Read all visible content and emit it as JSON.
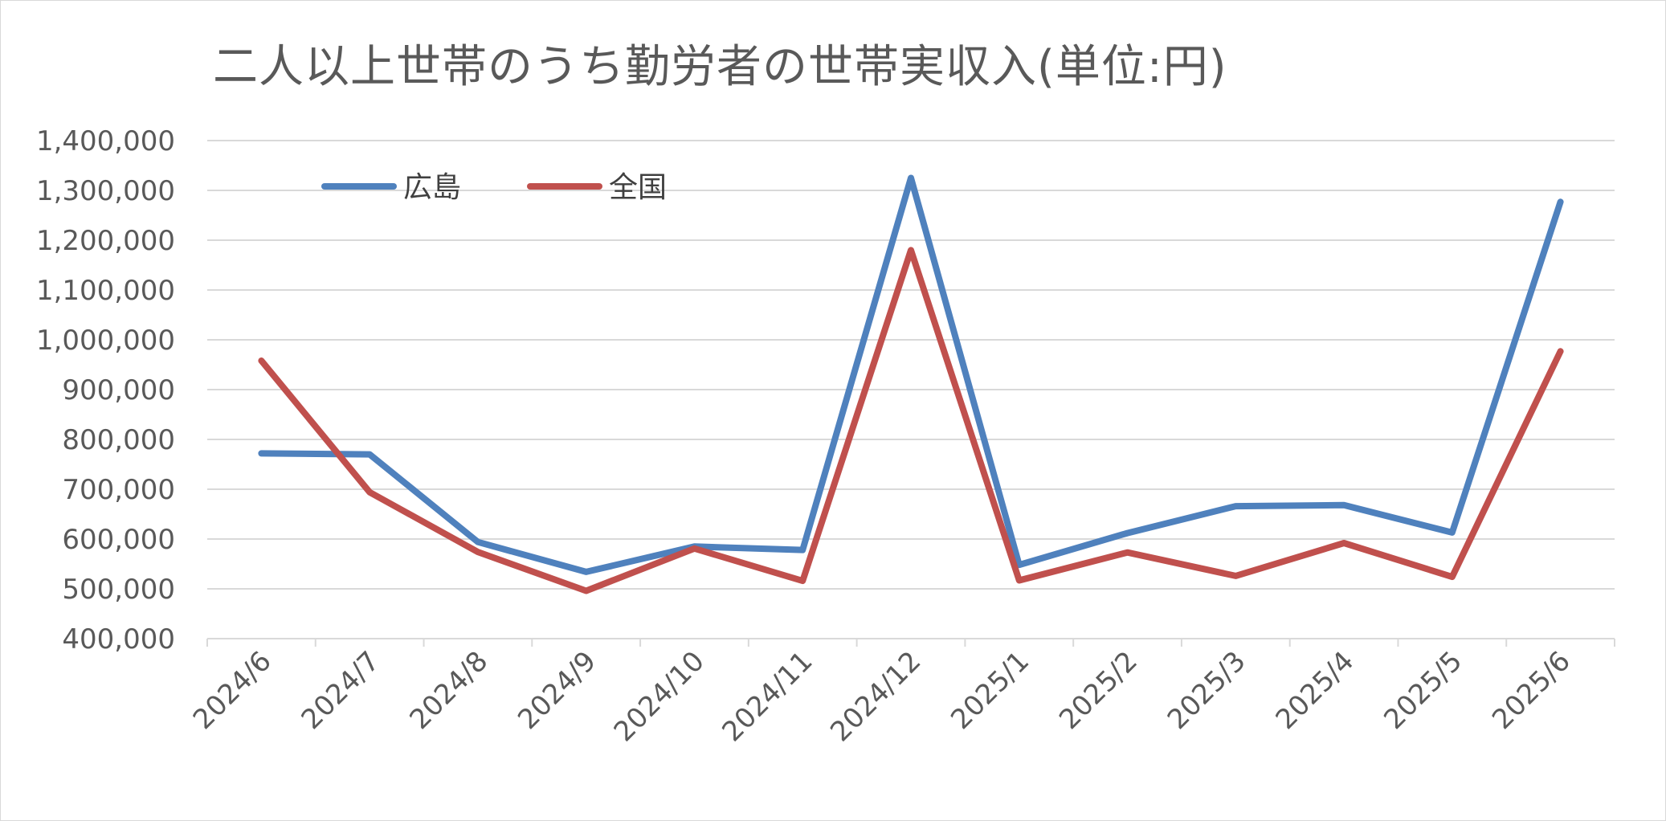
{
  "chart_data": {
    "type": "line",
    "title": "二人以上世帯のうち勤労者の世帯実収入(単位:円)",
    "categories": [
      "2024/6",
      "2024/7",
      "2024/8",
      "2024/9",
      "2024/10",
      "2024/11",
      "2024/12",
      "2025/1",
      "2025/2",
      "2025/3",
      "2025/4",
      "2025/5",
      "2025/6"
    ],
    "series": [
      {
        "name": "広島",
        "color": "#4F81BD",
        "values": [
          772000,
          770000,
          594000,
          534000,
          585000,
          578000,
          1325000,
          548000,
          612000,
          666000,
          668000,
          613000,
          1277000
        ]
      },
      {
        "name": "全国",
        "color": "#C0504D",
        "values": [
          958000,
          694000,
          574000,
          496000,
          581000,
          516000,
          1180000,
          517000,
          573000,
          526000,
          592000,
          524000,
          977000
        ]
      }
    ],
    "y_ticks": [
      "400,000",
      "500,000",
      "600,000",
      "700,000",
      "800,000",
      "900,000",
      "1,000,000",
      "1,100,000",
      "1,200,000",
      "1,300,000",
      "1,400,000"
    ],
    "ylim": [
      400000,
      1400000
    ],
    "grid": true,
    "legend_position": "top-left"
  }
}
